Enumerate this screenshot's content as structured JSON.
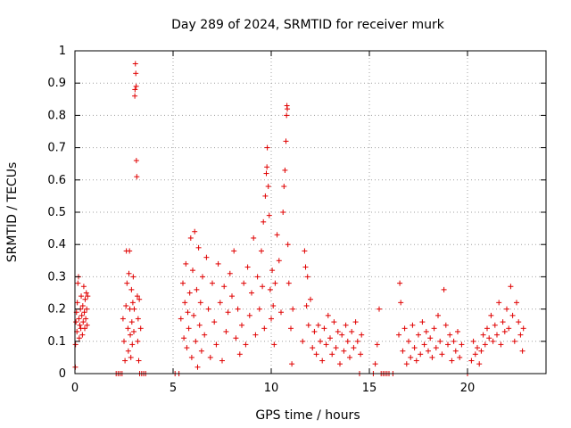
{
  "chart_data": {
    "type": "scatter",
    "title": "Day 289 of 2024, SRMTID for receiver murk",
    "xlabel": "GPS time / hours",
    "ylabel": "SRMTID / TECUs",
    "xlim": [
      0,
      24
    ],
    "ylim": [
      0,
      1
    ],
    "xticks": [
      0,
      5,
      10,
      15,
      20
    ],
    "yticks": [
      0,
      0.1,
      0.2,
      0.3,
      0.4,
      0.5,
      0.6,
      0.7,
      0.8,
      0.9,
      1
    ],
    "grid": true,
    "marker": "plus",
    "color": "#e00000",
    "series": [
      {
        "values": [
          [
            0.02,
            0.02
          ],
          [
            0.03,
            0.09
          ],
          [
            0.05,
            0.16
          ],
          [
            0.08,
            0.19
          ],
          [
            0.1,
            0.13
          ],
          [
            0.12,
            0.22
          ],
          [
            0.15,
            0.28
          ],
          [
            0.18,
            0.3
          ],
          [
            0.2,
            0.17
          ],
          [
            0.22,
            0.11
          ],
          [
            0.25,
            0.15
          ],
          [
            0.28,
            0.2
          ],
          [
            0.3,
            0.14
          ],
          [
            0.32,
            0.24
          ],
          [
            0.35,
            0.18
          ],
          [
            0.38,
            0.12
          ],
          [
            0.4,
            0.21
          ],
          [
            0.42,
            0.16
          ],
          [
            0.45,
            0.27
          ],
          [
            0.48,
            0.19
          ],
          [
            0.5,
            0.14
          ],
          [
            0.52,
            0.23
          ],
          [
            0.55,
            0.17
          ],
          [
            0.58,
            0.25
          ],
          [
            0.6,
            0.2
          ],
          [
            0.62,
            0.15
          ],
          [
            0.65,
            0.24
          ],
          [
            2.1,
            0.0
          ],
          [
            2.2,
            0.0
          ],
          [
            2.3,
            0.0
          ],
          [
            2.4,
            0.0
          ],
          [
            2.45,
            0.17
          ],
          [
            2.5,
            0.1
          ],
          [
            2.55,
            0.04
          ],
          [
            2.6,
            0.21
          ],
          [
            2.62,
            0.38
          ],
          [
            2.65,
            0.28
          ],
          [
            2.7,
            0.14
          ],
          [
            2.72,
            0.07
          ],
          [
            2.75,
            0.31
          ],
          [
            2.78,
            0.38
          ],
          [
            2.8,
            0.2
          ],
          [
            2.82,
            0.12
          ],
          [
            2.85,
            0.05
          ],
          [
            2.88,
            0.26
          ],
          [
            2.9,
            0.16
          ],
          [
            2.92,
            0.09
          ],
          [
            2.95,
            0.22
          ],
          [
            2.97,
            0.3
          ],
          [
            3.0,
            0.13
          ],
          [
            3.02,
            0.2
          ],
          [
            3.05,
            0.86
          ],
          [
            3.06,
            0.88
          ],
          [
            3.08,
            0.96
          ],
          [
            3.1,
            0.93
          ],
          [
            3.12,
            0.89
          ],
          [
            3.13,
            0.66
          ],
          [
            3.15,
            0.61
          ],
          [
            3.18,
            0.24
          ],
          [
            3.2,
            0.1
          ],
          [
            3.22,
            0.17
          ],
          [
            3.25,
            0.04
          ],
          [
            3.28,
            0.23
          ],
          [
            3.3,
            0.0
          ],
          [
            3.35,
            0.14
          ],
          [
            3.4,
            0.0
          ],
          [
            3.5,
            0.0
          ],
          [
            3.6,
            0.0
          ],
          [
            5.1,
            0.0
          ],
          [
            5.3,
            0.0
          ],
          [
            5.4,
            0.17
          ],
          [
            5.5,
            0.28
          ],
          [
            5.55,
            0.11
          ],
          [
            5.6,
            0.22
          ],
          [
            5.65,
            0.34
          ],
          [
            5.7,
            0.08
          ],
          [
            5.75,
            0.19
          ],
          [
            5.8,
            0.14
          ],
          [
            5.85,
            0.25
          ],
          [
            5.9,
            0.42
          ],
          [
            5.95,
            0.05
          ],
          [
            6.0,
            0.32
          ],
          [
            6.05,
            0.18
          ],
          [
            6.1,
            0.44
          ],
          [
            6.15,
            0.1
          ],
          [
            6.2,
            0.26
          ],
          [
            6.25,
            0.02
          ],
          [
            6.3,
            0.39
          ],
          [
            6.35,
            0.15
          ],
          [
            6.4,
            0.22
          ],
          [
            6.45,
            0.07
          ],
          [
            6.5,
            0.3
          ],
          [
            6.6,
            0.12
          ],
          [
            6.7,
            0.36
          ],
          [
            6.8,
            0.2
          ],
          [
            6.9,
            0.05
          ],
          [
            7.0,
            0.28
          ],
          [
            7.1,
            0.16
          ],
          [
            7.2,
            0.09
          ],
          [
            7.3,
            0.34
          ],
          [
            7.4,
            0.22
          ],
          [
            7.5,
            0.04
          ],
          [
            7.6,
            0.27
          ],
          [
            7.7,
            0.13
          ],
          [
            7.8,
            0.19
          ],
          [
            7.9,
            0.31
          ],
          [
            8.0,
            0.24
          ],
          [
            8.1,
            0.38
          ],
          [
            8.2,
            0.11
          ],
          [
            8.3,
            0.2
          ],
          [
            8.4,
            0.06
          ],
          [
            8.5,
            0.15
          ],
          [
            8.6,
            0.28
          ],
          [
            8.7,
            0.09
          ],
          [
            8.8,
            0.33
          ],
          [
            8.9,
            0.18
          ],
          [
            9.0,
            0.25
          ],
          [
            9.1,
            0.42
          ],
          [
            9.2,
            0.12
          ],
          [
            9.3,
            0.3
          ],
          [
            9.4,
            0.2
          ],
          [
            9.5,
            0.38
          ],
          [
            9.55,
            0.27
          ],
          [
            9.6,
            0.47
          ],
          [
            9.65,
            0.14
          ],
          [
            9.7,
            0.55
          ],
          [
            9.75,
            0.62
          ],
          [
            9.78,
            0.64
          ],
          [
            9.8,
            0.7
          ],
          [
            9.85,
            0.58
          ],
          [
            9.9,
            0.49
          ],
          [
            9.95,
            0.26
          ],
          [
            10.0,
            0.17
          ],
          [
            10.05,
            0.32
          ],
          [
            10.1,
            0.21
          ],
          [
            10.15,
            0.09
          ],
          [
            10.2,
            0.28
          ],
          [
            10.3,
            0.43
          ],
          [
            10.4,
            0.35
          ],
          [
            10.5,
            0.19
          ],
          [
            10.6,
            0.5
          ],
          [
            10.65,
            0.58
          ],
          [
            10.7,
            0.63
          ],
          [
            10.75,
            0.72
          ],
          [
            10.78,
            0.8
          ],
          [
            10.8,
            0.83
          ],
          [
            10.82,
            0.82
          ],
          [
            10.85,
            0.4
          ],
          [
            10.9,
            0.28
          ],
          [
            11.0,
            0.14
          ],
          [
            11.05,
            0.03
          ],
          [
            11.1,
            0.2
          ],
          [
            11.6,
            0.1
          ],
          [
            11.7,
            0.38
          ],
          [
            11.75,
            0.33
          ],
          [
            11.8,
            0.21
          ],
          [
            11.85,
            0.3
          ],
          [
            11.9,
            0.15
          ],
          [
            12.0,
            0.23
          ],
          [
            12.1,
            0.08
          ],
          [
            12.2,
            0.13
          ],
          [
            12.3,
            0.06
          ],
          [
            12.4,
            0.15
          ],
          [
            12.5,
            0.1
          ],
          [
            12.6,
            0.04
          ],
          [
            12.7,
            0.14
          ],
          [
            12.8,
            0.09
          ],
          [
            12.9,
            0.18
          ],
          [
            13.0,
            0.11
          ],
          [
            13.1,
            0.06
          ],
          [
            13.2,
            0.16
          ],
          [
            13.3,
            0.08
          ],
          [
            13.4,
            0.13
          ],
          [
            13.5,
            0.03
          ],
          [
            13.6,
            0.12
          ],
          [
            13.7,
            0.07
          ],
          [
            13.8,
            0.15
          ],
          [
            13.9,
            0.1
          ],
          [
            14.0,
            0.05
          ],
          [
            14.1,
            0.13
          ],
          [
            14.2,
            0.08
          ],
          [
            14.3,
            0.16
          ],
          [
            14.4,
            0.1
          ],
          [
            14.5,
            0.0
          ],
          [
            14.55,
            0.06
          ],
          [
            14.6,
            0.12
          ],
          [
            15.2,
            0.0
          ],
          [
            15.3,
            0.03
          ],
          [
            15.4,
            0.09
          ],
          [
            15.5,
            0.2
          ],
          [
            15.6,
            0.0
          ],
          [
            15.7,
            0.0
          ],
          [
            15.8,
            0.0
          ],
          [
            15.9,
            0.0
          ],
          [
            16.0,
            0.0
          ],
          [
            16.2,
            0.0
          ],
          [
            16.5,
            0.12
          ],
          [
            16.55,
            0.28
          ],
          [
            16.6,
            0.22
          ],
          [
            16.7,
            0.07
          ],
          [
            16.8,
            0.14
          ],
          [
            16.9,
            0.03
          ],
          [
            17.0,
            0.1
          ],
          [
            17.1,
            0.05
          ],
          [
            17.2,
            0.15
          ],
          [
            17.3,
            0.08
          ],
          [
            17.4,
            0.04
          ],
          [
            17.5,
            0.12
          ],
          [
            17.6,
            0.06
          ],
          [
            17.7,
            0.16
          ],
          [
            17.8,
            0.09
          ],
          [
            17.9,
            0.13
          ],
          [
            18.0,
            0.07
          ],
          [
            18.1,
            0.11
          ],
          [
            18.2,
            0.05
          ],
          [
            18.3,
            0.14
          ],
          [
            18.4,
            0.08
          ],
          [
            18.5,
            0.18
          ],
          [
            18.6,
            0.1
          ],
          [
            18.7,
            0.06
          ],
          [
            18.8,
            0.26
          ],
          [
            18.9,
            0.15
          ],
          [
            19.0,
            0.09
          ],
          [
            19.1,
            0.12
          ],
          [
            19.2,
            0.04
          ],
          [
            19.3,
            0.1
          ],
          [
            19.4,
            0.07
          ],
          [
            19.5,
            0.13
          ],
          [
            19.6,
            0.05
          ],
          [
            19.7,
            0.09
          ],
          [
            20.0,
            0.0
          ],
          [
            20.2,
            0.04
          ],
          [
            20.3,
            0.1
          ],
          [
            20.4,
            0.06
          ],
          [
            20.5,
            0.08
          ],
          [
            20.6,
            0.03
          ],
          [
            20.7,
            0.07
          ],
          [
            20.8,
            0.12
          ],
          [
            20.9,
            0.09
          ],
          [
            21.0,
            0.14
          ],
          [
            21.1,
            0.11
          ],
          [
            21.2,
            0.18
          ],
          [
            21.3,
            0.1
          ],
          [
            21.4,
            0.15
          ],
          [
            21.5,
            0.12
          ],
          [
            21.6,
            0.22
          ],
          [
            21.7,
            0.09
          ],
          [
            21.8,
            0.16
          ],
          [
            21.9,
            0.13
          ],
          [
            22.0,
            0.2
          ],
          [
            22.1,
            0.14
          ],
          [
            22.2,
            0.27
          ],
          [
            22.3,
            0.18
          ],
          [
            22.4,
            0.1
          ],
          [
            22.5,
            0.22
          ],
          [
            22.6,
            0.16
          ],
          [
            22.7,
            0.12
          ],
          [
            22.8,
            0.07
          ],
          [
            22.85,
            0.14
          ]
        ]
      }
    ]
  }
}
